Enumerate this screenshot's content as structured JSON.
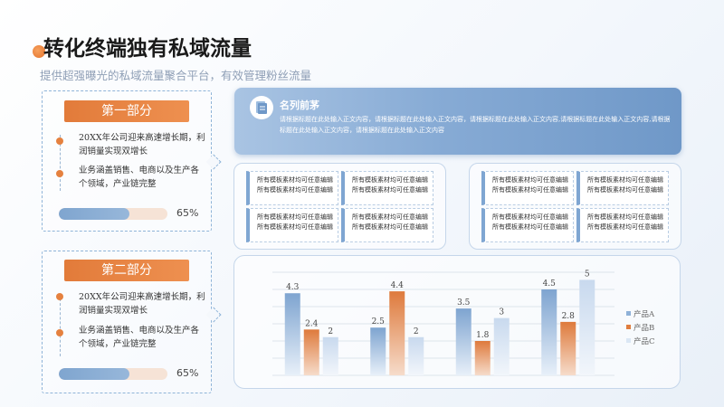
{
  "header": {
    "title": "转化终端独有私域流量",
    "subtitle": "提供超强曝光的私域流量聚合平台，有效管理粉丝流量"
  },
  "sections": [
    {
      "heading": "第一部分",
      "points": [
        "20XX年公司迎来高速增长期，利润销量实现双增长",
        "业务涵盖销售、电商以及生产各个领域，产业链完整"
      ],
      "progress": 0.65,
      "progress_label": "65%"
    },
    {
      "heading": "第二部分",
      "points": [
        "20XX年公司迎来高速增长期，利润销量实现双增长",
        "业务涵盖销售、电商以及生产各个领域，产业链完整"
      ],
      "progress": 0.65,
      "progress_label": "65%"
    }
  ],
  "banner": {
    "name": "名列前茅",
    "text": "请根据标题在此处输入正文内容，请根据标题在此处输入正文内容，请根据标题在此处输入正文内容,请根据标题在此处输入正文内容,请根据标题在此处输入正文内容，请根据标题在此处输入正文内容",
    "icon": "document-icon"
  },
  "material_grids": [
    {
      "cells": [
        [
          "所有模板素材均可任意编辑",
          "所有模板素材均可任意编辑"
        ],
        [
          "所有模板素材均可任意编辑",
          "所有模板素材均可任意编辑"
        ],
        [
          "所有模板素材均可任意编辑",
          "所有模板素材均可任意编辑"
        ],
        [
          "所有模板素材均可任意编辑",
          "所有模板素材均可任意编辑"
        ]
      ]
    },
    {
      "cells": [
        [
          "所有模板素材均可任意编辑",
          "所有模板素材均可任意编辑"
        ],
        [
          "所有模板素材均可任意编辑",
          "所有模板素材均可任意编辑"
        ],
        [
          "所有模板素材均可任意编辑",
          "所有模板素材均可任意编辑"
        ],
        [
          "所有模板素材均可任意编辑",
          "所有模板素材均可任意编辑"
        ]
      ]
    }
  ],
  "colors": {
    "accent_orange": "#e5813f",
    "accent_blue": "#7fa6d2",
    "series_a": "#8fb1d8",
    "series_b": "#e07d3f",
    "series_c": "#cfdff0"
  },
  "chart_data": {
    "type": "bar",
    "categories": [
      "",
      "",
      "",
      ""
    ],
    "series": [
      {
        "name": "产品A",
        "values": [
          4.3,
          2.5,
          3.5,
          4.5
        ]
      },
      {
        "name": "产品B",
        "values": [
          2.4,
          4.4,
          1.8,
          2.8
        ]
      },
      {
        "name": "产品C",
        "values": [
          2,
          2,
          3,
          5
        ]
      }
    ],
    "ylim": [
      0,
      5.4
    ],
    "grid": true,
    "legend": "right",
    "data_labels": true
  }
}
